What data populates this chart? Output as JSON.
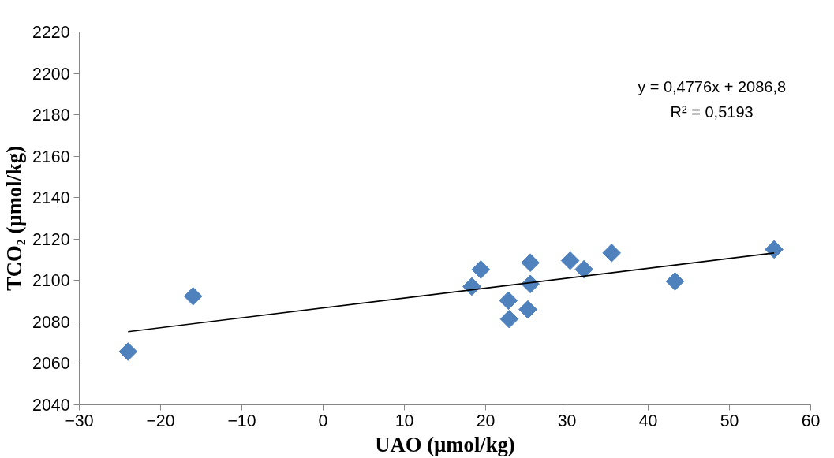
{
  "chart_data": {
    "type": "scatter",
    "xlabel": "UAO (µmol/kg)",
    "ylabel": "TCO₂ (µmol/kg)",
    "xlim": [
      -30,
      60
    ],
    "xticks": [
      -30,
      -20,
      -10,
      0,
      10,
      20,
      30,
      40,
      50,
      60
    ],
    "ylim": [
      2040,
      2220
    ],
    "yticks": [
      2040,
      2060,
      2080,
      2100,
      2120,
      2140,
      2160,
      2180,
      2200,
      2220
    ],
    "grid": false,
    "series": [
      {
        "marker": "diamond",
        "color": "#4f81bd",
        "x": [
          -24.0,
          -16.0,
          18.3,
          19.4,
          22.8,
          22.9,
          25.2,
          25.5,
          25.5,
          30.4,
          32.1,
          35.5,
          43.3,
          55.5
        ],
        "values": [
          2065.7,
          2092.4,
          2097.1,
          2105.3,
          2090.3,
          2081.4,
          2086.0,
          2108.6,
          2098.3,
          2109.6,
          2105.4,
          2113.3,
          2099.6,
          2115.0
        ]
      },
      {
        "type": "line",
        "color": "#000000",
        "x": [
          -24.0,
          55.5
        ],
        "values": [
          2075.3,
          2113.3
        ]
      }
    ],
    "annotations": [
      "y = 0,4776x + 2086,8",
      "R² = 0,5193"
    ]
  }
}
